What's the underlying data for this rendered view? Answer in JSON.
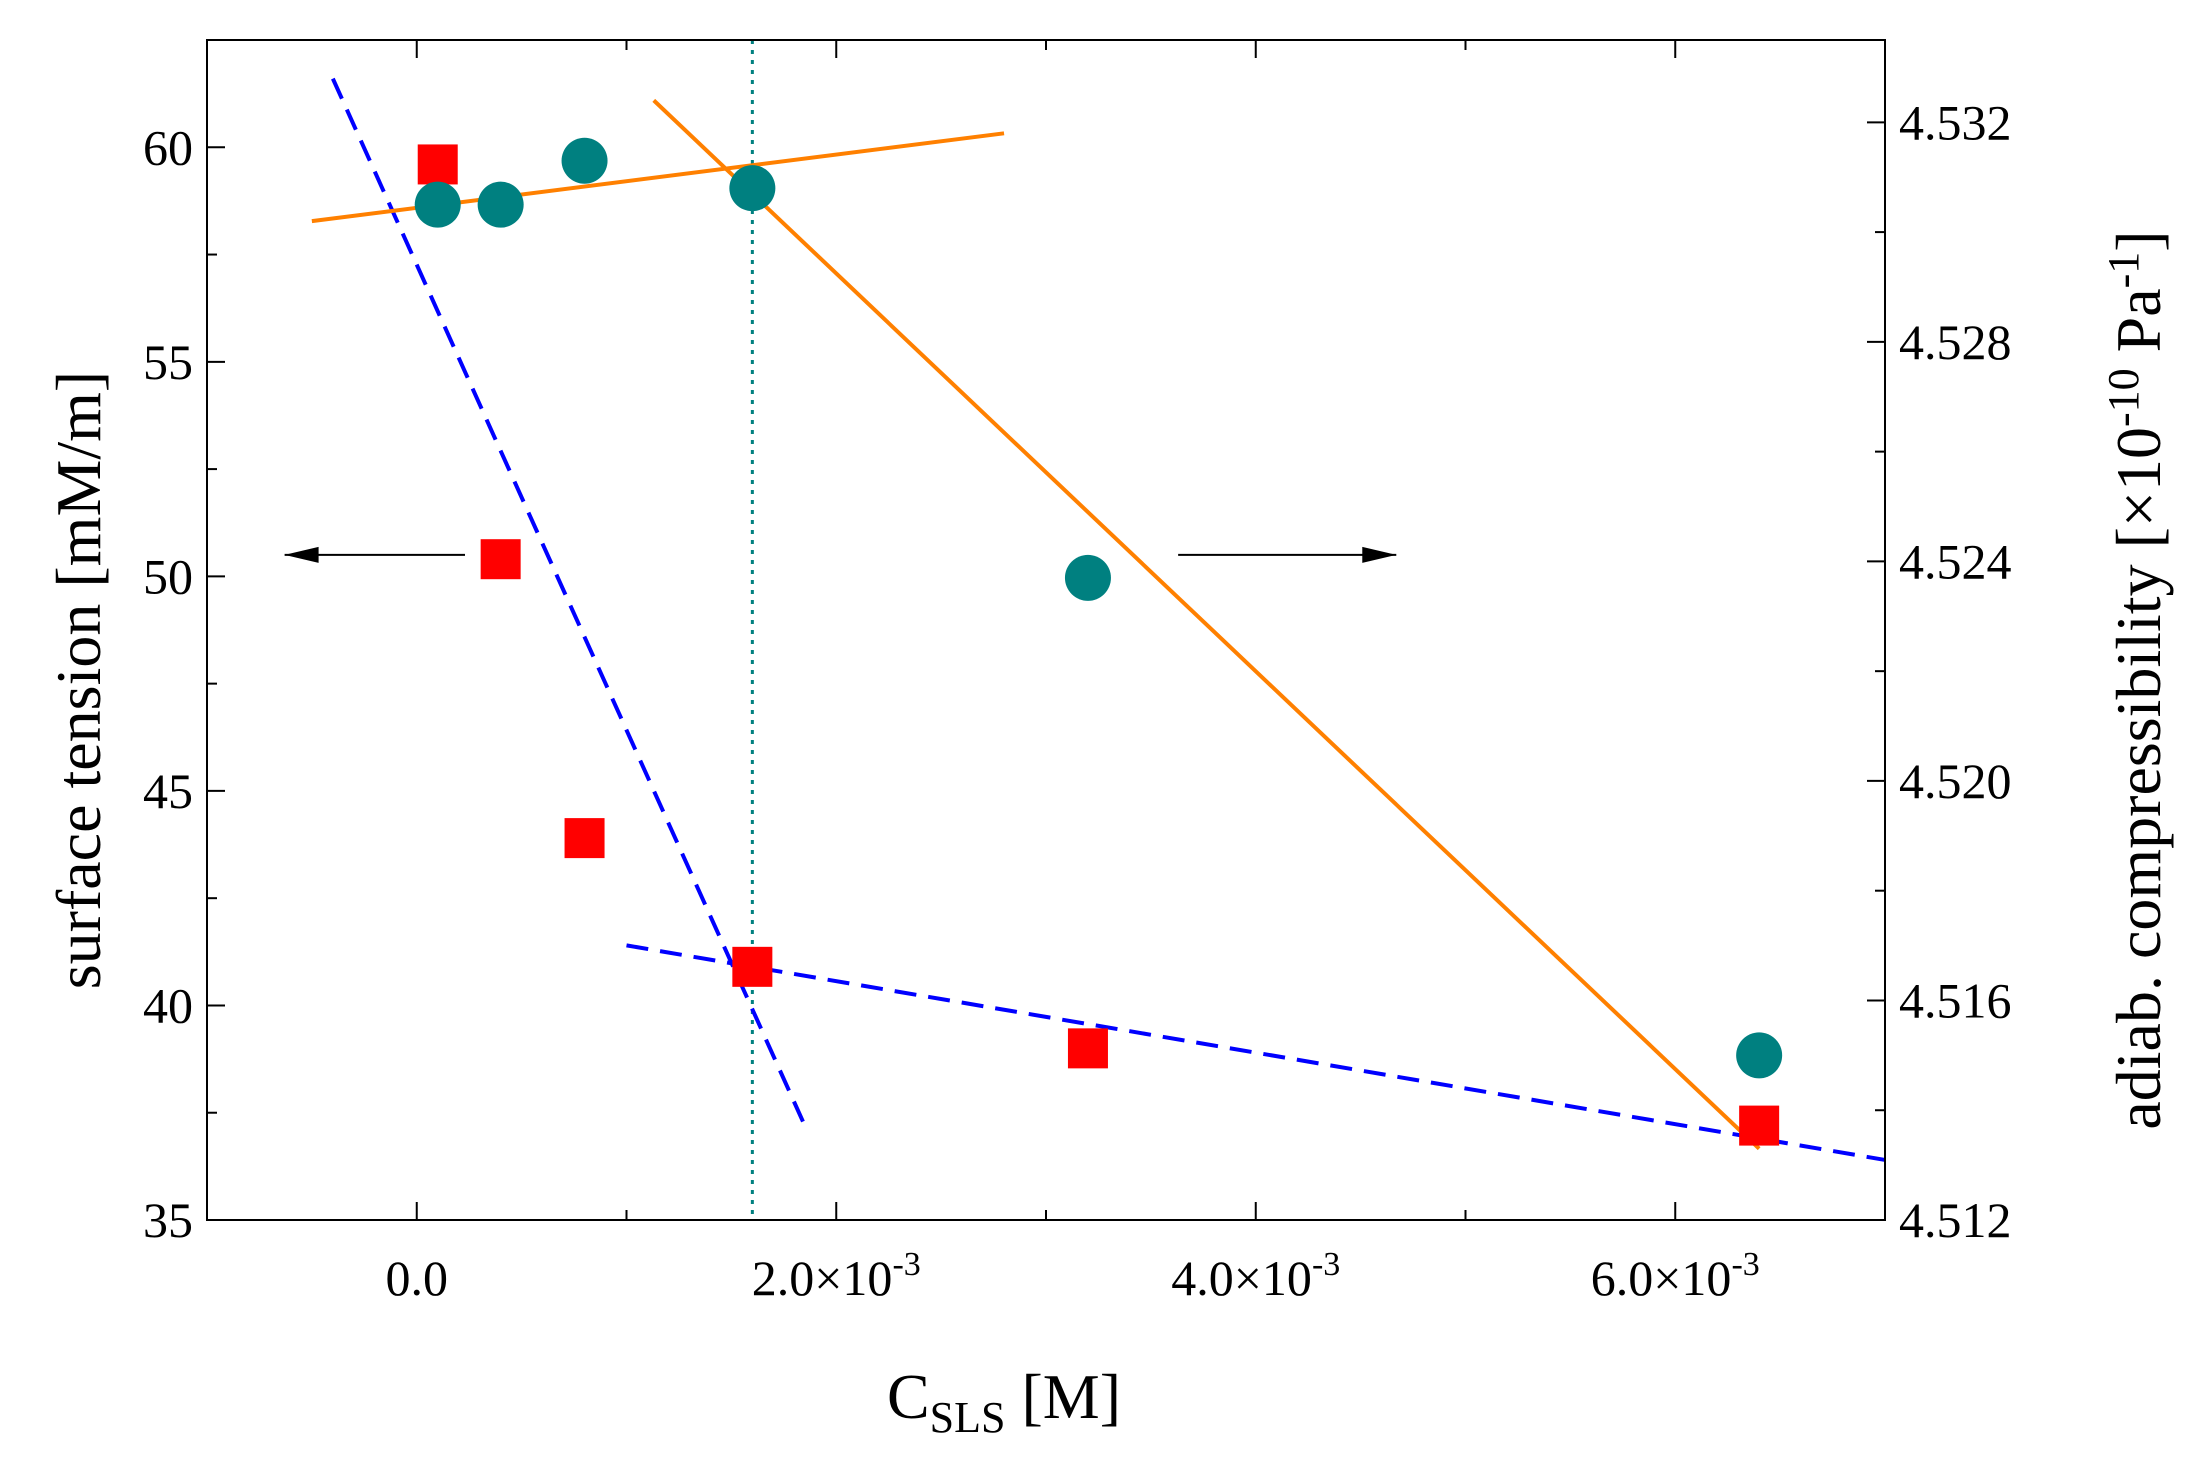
{
  "chart_data": {
    "type": "scatter",
    "title": "",
    "xlabel": {
      "main": "C",
      "sub": "SLS",
      "rest": " [M]"
    },
    "ylabel_left": "surface tension [mM/m]",
    "ylabel_right": {
      "prefix": "adiab. compressibility [×10",
      "exp1": "-10",
      "mid": " Pa",
      "exp2": "-1",
      "suffix": "]"
    },
    "xlim": [
      -0.001,
      0.007
    ],
    "ylim_left": [
      35,
      62.5
    ],
    "ylim_right": [
      4.512,
      4.5335
    ],
    "x_ticks": [
      {
        "value": 0.0,
        "label": "0.0"
      },
      {
        "value": 0.002,
        "label": "2.0×10",
        "exp": "-3"
      },
      {
        "value": 0.004,
        "label": "4.0×10",
        "exp": "-3"
      },
      {
        "value": 0.006,
        "label": "6.0×10",
        "exp": "-3"
      }
    ],
    "x_minor_ticks": [
      0.001,
      0.003,
      0.005
    ],
    "y_left_ticks": [
      35,
      40,
      45,
      50,
      55,
      60
    ],
    "y_left_minor_ticks": [
      37.5,
      42.5,
      47.5,
      52.5,
      57.5
    ],
    "y_right_ticks": [
      "4.512",
      "4.516",
      "4.520",
      "4.524",
      "4.528",
      "4.532"
    ],
    "y_right_minor_ticks": [
      4.514,
      4.518,
      4.522,
      4.526,
      4.53
    ],
    "series": [
      {
        "name": "surface tension",
        "axis": "left",
        "marker": "square",
        "color": "#ff0000",
        "x": [
          0.0001,
          0.0004,
          0.0008,
          0.0016,
          0.0032,
          0.0064
        ],
        "y": [
          59.6,
          50.4,
          43.9,
          40.9,
          39.0,
          37.2
        ]
      },
      {
        "name": "adiabatic compressibility",
        "axis": "right",
        "marker": "circle",
        "color": "#008080",
        "x": [
          0.0001,
          0.0004,
          0.0008,
          0.0016,
          0.0032,
          0.0064
        ],
        "y": [
          4.5305,
          4.5305,
          4.5313,
          4.5308,
          4.5237,
          4.515
        ]
      }
    ],
    "fit_lines": [
      {
        "name": "surface-tension-fit-steep",
        "axis": "left",
        "color": "#0000ff",
        "style": "dashed",
        "x": [
          -0.0004,
          0.00185
        ],
        "y": [
          61.6,
          37.2
        ]
      },
      {
        "name": "surface-tension-fit-shallow",
        "axis": "left",
        "color": "#0000ff",
        "style": "dashed",
        "x": [
          0.001,
          0.007
        ],
        "y": [
          41.4,
          36.4
        ]
      },
      {
        "name": "compressibility-fit-flat",
        "axis": "right",
        "color": "#ff8000",
        "style": "solid",
        "x": [
          -0.0005,
          0.0028
        ],
        "y": [
          4.5302,
          4.5318
        ]
      },
      {
        "name": "compressibility-fit-steep",
        "axis": "right",
        "color": "#ff8000",
        "style": "solid",
        "x": [
          0.00113,
          0.0064
        ],
        "y": [
          4.5324,
          4.5133
        ]
      }
    ],
    "vertical_marker": {
      "x": 0.0016,
      "color": "#008080",
      "style": "dotted"
    },
    "annotations": [
      {
        "name": "left-axis-arrow",
        "direction": "left",
        "x_from": 0.00023,
        "x_to": -0.00063,
        "y_left": 50.5
      },
      {
        "name": "right-axis-arrow",
        "direction": "right",
        "x_from": 0.00363,
        "x_to": 0.00467,
        "y_left": 50.5
      }
    ]
  }
}
